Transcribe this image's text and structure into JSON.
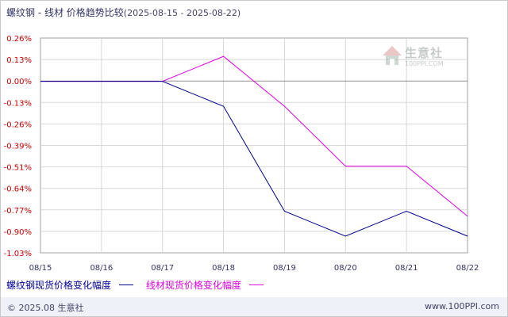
{
  "title": "螺纹钢 - 线材 价格趋势比较",
  "date_range": "(2025-08-15 - 2025-08-22)",
  "watermark": {
    "text": "生意社",
    "sub": "100PPI.COM"
  },
  "footer": {
    "left": "© 2025.08 生意社",
    "right": "www.100PPI.com"
  },
  "colors": {
    "series1": "#00008b",
    "series2": "#e000e0",
    "axis_label_y": "#cc0000",
    "grid": "#d8d8d8",
    "zero_line": "#909090"
  },
  "chart_data": {
    "type": "line",
    "x": [
      "08/15",
      "08/16",
      "08/17",
      "08/18",
      "08/19",
      "08/20",
      "08/21",
      "08/22"
    ],
    "y_ticks": [
      "0.26%",
      "0.13%",
      "0.00%",
      "-0.13%",
      "-0.26%",
      "-0.39%",
      "-0.51%",
      "-0.64%",
      "-0.77%",
      "-0.90%",
      "-1.03%"
    ],
    "ylim": [
      -1.03,
      0.26
    ],
    "grid": true,
    "legend_position": "bottom",
    "series": [
      {
        "name": "螺纹钢现货价格变化幅度",
        "values": [
          0.0,
          0.0,
          0.0,
          -0.15,
          -0.78,
          -0.93,
          -0.78,
          -0.93
        ]
      },
      {
        "name": "线材现货价格变化幅度",
        "values": [
          0.0,
          0.0,
          0.0,
          0.15,
          -0.15,
          -0.51,
          -0.51,
          -0.81
        ]
      }
    ]
  }
}
